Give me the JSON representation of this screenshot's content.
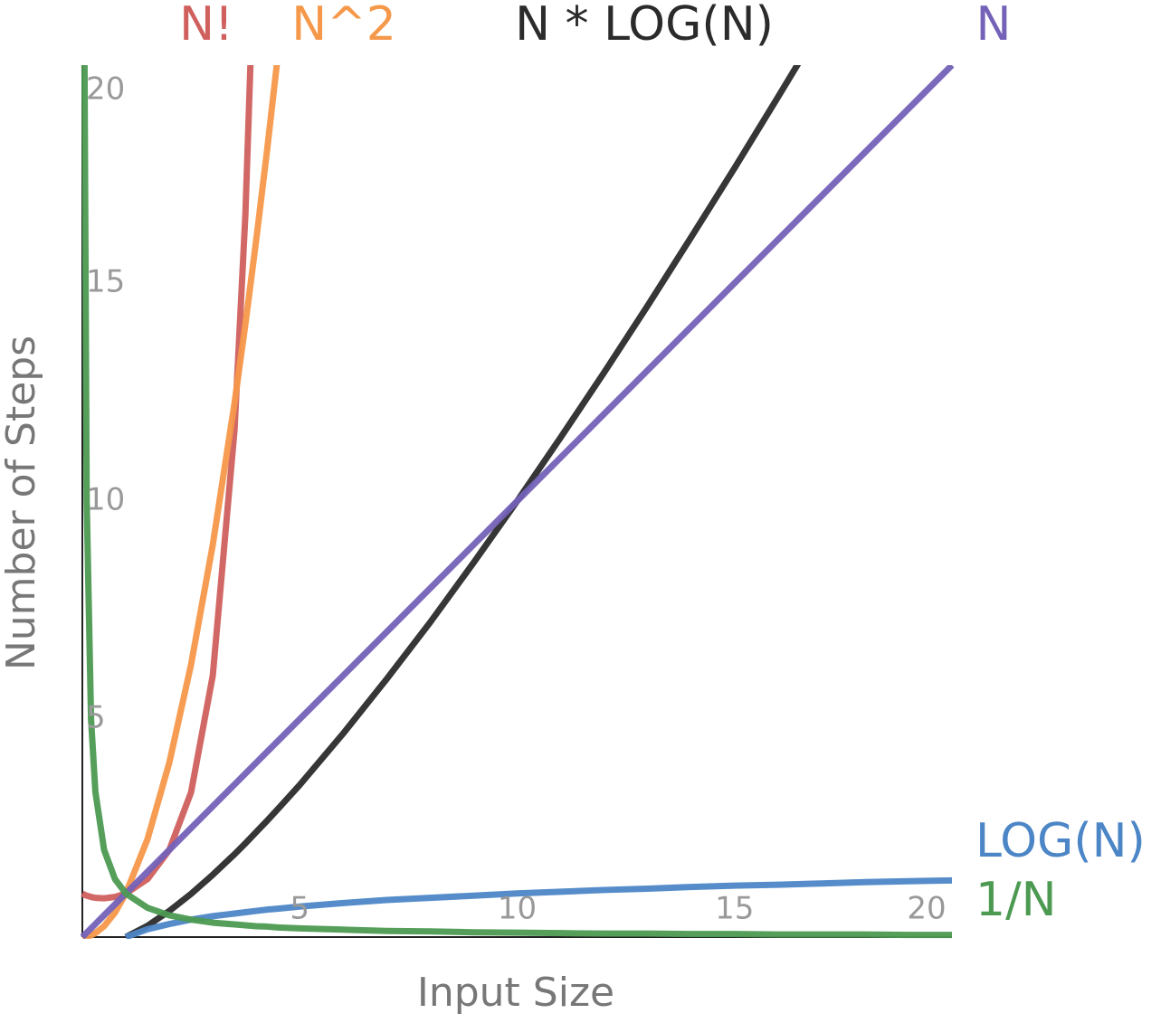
{
  "chart_data": {
    "type": "line",
    "xlabel": "Input Size",
    "ylabel": "Number of Steps",
    "x": [
      0,
      0.05,
      0.1,
      0.2,
      0.3,
      0.5,
      0.75,
      1,
      1.5,
      2,
      2.5,
      3,
      3.5,
      3.75,
      4,
      4.25,
      4.5,
      5,
      6,
      7,
      8,
      9,
      10,
      11,
      12,
      13,
      14,
      15,
      16,
      17,
      18,
      19,
      20
    ],
    "series": [
      {
        "name": "N!",
        "color": "#d0605e",
        "values": [
          1,
          0.97,
          0.95,
          0.92,
          0.9,
          0.89,
          0.92,
          1,
          1.33,
          2,
          3.32,
          6,
          11.63,
          16.58,
          24,
          null,
          null,
          null,
          null,
          null,
          null,
          null,
          null,
          null,
          null,
          null,
          null,
          null,
          null,
          null,
          null,
          null,
          null
        ]
      },
      {
        "name": "N^2",
        "color": "#f5984a",
        "values": [
          0,
          0,
          0.01,
          0.04,
          0.09,
          0.25,
          0.56,
          1,
          2.25,
          4,
          6.25,
          9,
          12.25,
          14.06,
          16,
          18.06,
          20.25,
          null,
          null,
          null,
          null,
          null,
          null,
          null,
          null,
          null,
          null,
          null,
          null,
          null,
          null,
          null,
          null
        ]
      },
      {
        "name": "N * LOG(N)",
        "color": "#2b2b2b",
        "values": [
          null,
          null,
          null,
          null,
          null,
          null,
          null,
          0,
          0.26,
          0.6,
          0.99,
          1.43,
          1.9,
          2.15,
          2.41,
          2.67,
          2.94,
          3.49,
          4.67,
          5.92,
          7.22,
          8.59,
          10,
          11.46,
          12.95,
          14.48,
          16.05,
          17.64,
          19.27,
          20.92,
          null,
          null,
          null
        ]
      },
      {
        "name": "N",
        "color": "#7461b8",
        "values": [
          0,
          0.05,
          0.1,
          0.2,
          0.3,
          0.5,
          0.75,
          1,
          1.5,
          2,
          2.5,
          3,
          3.5,
          3.75,
          4,
          4.25,
          4.5,
          5,
          6,
          7,
          8,
          9,
          10,
          11,
          12,
          13,
          14,
          15,
          16,
          17,
          18,
          19,
          20
        ]
      },
      {
        "name": "LOG(N)",
        "color": "#4c86c6",
        "values": [
          null,
          null,
          null,
          null,
          null,
          null,
          null,
          0,
          0.18,
          0.3,
          0.4,
          0.48,
          0.54,
          0.57,
          0.6,
          0.63,
          0.65,
          0.7,
          0.78,
          0.85,
          0.9,
          0.95,
          1,
          1.04,
          1.08,
          1.11,
          1.15,
          1.18,
          1.2,
          1.23,
          1.26,
          1.28,
          1.3
        ]
      },
      {
        "name": "1/N",
        "color": "#4c9a52",
        "values": [
          null,
          20,
          10,
          5,
          3.33,
          2,
          1.33,
          1,
          0.67,
          0.5,
          0.4,
          0.33,
          0.29,
          0.27,
          0.25,
          0.24,
          0.22,
          0.2,
          0.17,
          0.14,
          0.13,
          0.11,
          0.1,
          0.09,
          0.08,
          0.08,
          0.07,
          0.07,
          0.06,
          0.06,
          0.06,
          0.05,
          0.05
        ]
      }
    ],
    "xlim": [
      0,
      20
    ],
    "ylim": [
      0,
      20
    ],
    "xticks": [
      5,
      10,
      15,
      20
    ],
    "yticks": [
      5,
      10,
      15,
      20
    ]
  }
}
